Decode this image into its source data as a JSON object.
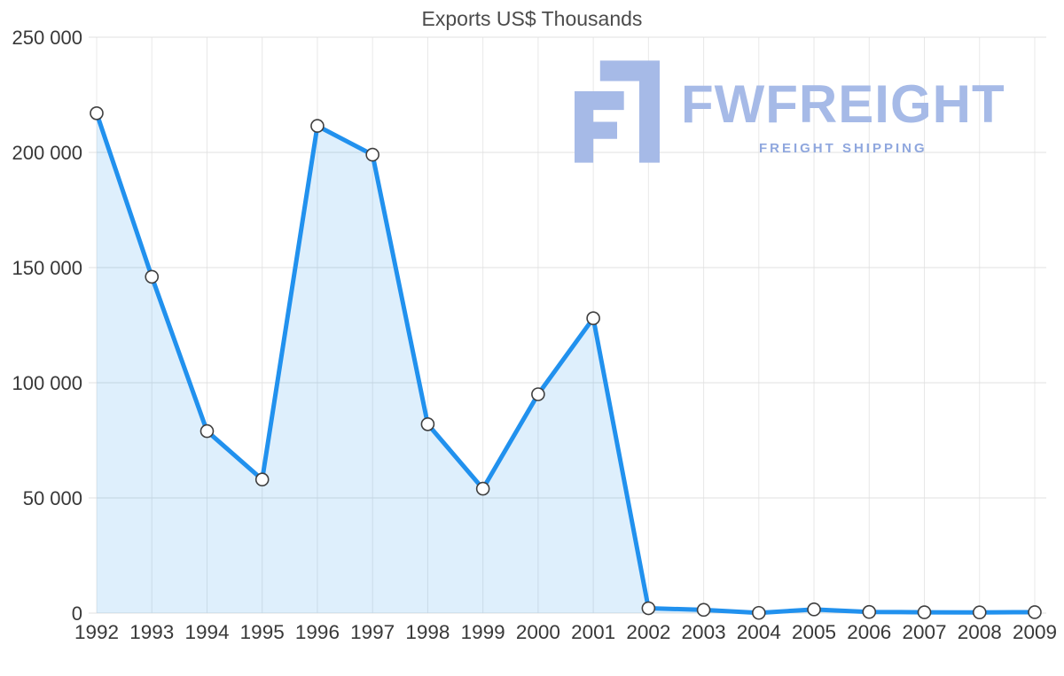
{
  "chart_data": {
    "type": "area",
    "title": "Exports US$ Thousands",
    "categories": [
      "1992",
      "1993",
      "1994",
      "1995",
      "1996",
      "1997",
      "1998",
      "1999",
      "2000",
      "2001",
      "2002",
      "2003",
      "2004",
      "2005",
      "2006",
      "2007",
      "2008",
      "2009"
    ],
    "series": [
      {
        "name": "Exports US$ Thousands",
        "values": [
          217000,
          146000,
          79000,
          58000,
          211500,
          199000,
          82000,
          54000,
          95000,
          128000,
          2100,
          1400,
          100,
          1600,
          500,
          350,
          300,
          400
        ]
      }
    ],
    "xlabel": "",
    "ylabel": "",
    "ylim": [
      0,
      250000
    ],
    "y_ticks": [
      {
        "value": 0,
        "label": "0"
      },
      {
        "value": 50000,
        "label": "50 000"
      },
      {
        "value": 100000,
        "label": "100 000"
      },
      {
        "value": 150000,
        "label": "150 000"
      },
      {
        "value": 200000,
        "label": "200 000"
      },
      {
        "value": 250000,
        "label": "250 000"
      }
    ],
    "grid": true,
    "legend_position": "none",
    "line_color": "#2191ee",
    "area_color": "#2191ee",
    "area_opacity": 0.15,
    "marker_fill": "#ffffff",
    "marker_stroke": "#3f3f3f",
    "grid_color_horizontal": "#e0e0e0",
    "grid_color_vertical": "#e8e8e8",
    "axis_text_color": "#383838",
    "title_color": "#4b4b4b"
  },
  "watermark": {
    "brand": "FWFREIGHT",
    "tagline": "FREIGHT SHIPPING",
    "brand_color": "#a6bae7",
    "tagline_color": "#8fa7de",
    "icon_color": "#a6bae7"
  }
}
